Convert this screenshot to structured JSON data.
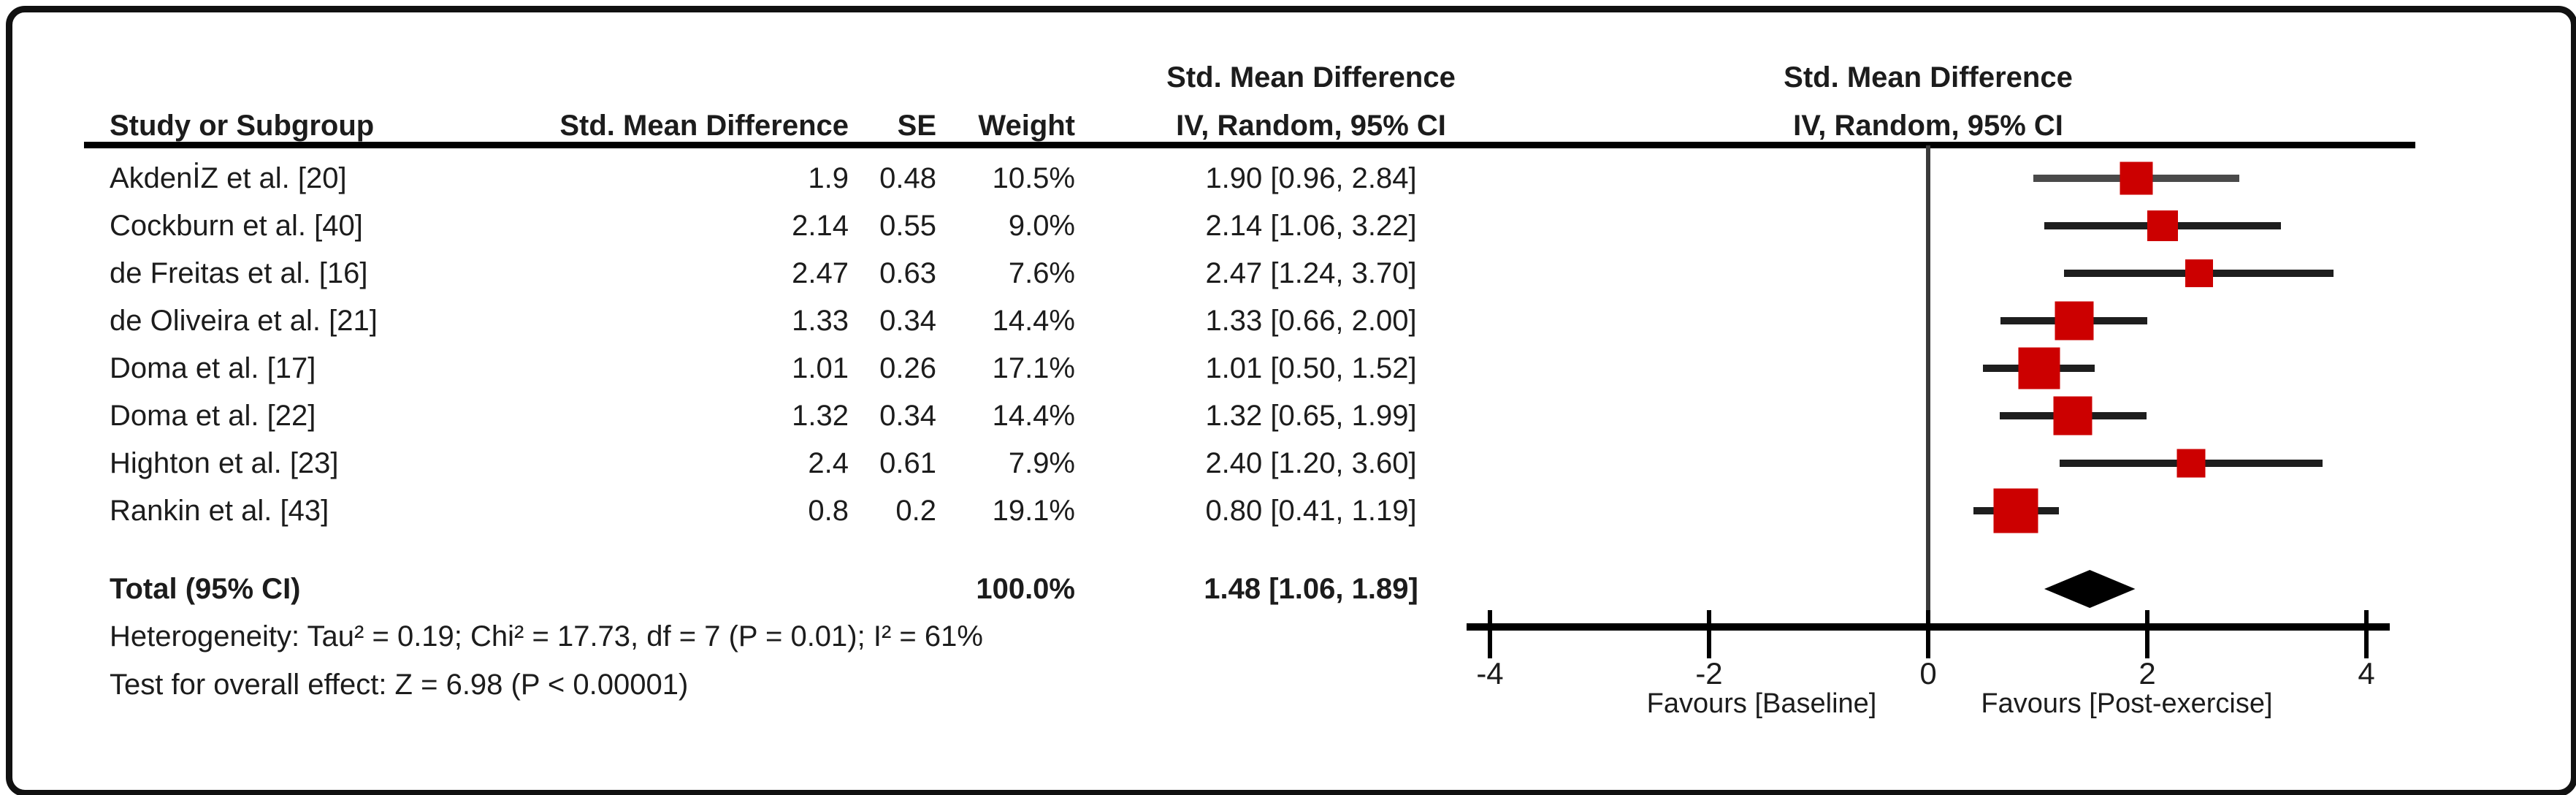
{
  "header": {
    "col_study": "Study or Subgroup",
    "col_smd": "Std. Mean Difference",
    "col_se": "SE",
    "col_weight": "Weight",
    "col_ci_line1": "Std. Mean Difference",
    "col_ci_line2": "IV, Random, 95% CI",
    "plot_line1": "Std. Mean Difference",
    "plot_line2": "IV, Random, 95% CI"
  },
  "rows": [
    {
      "study": "AkdenİZ et al. [20]",
      "smd": "1.9",
      "se": "0.48",
      "weight": "10.5%",
      "ci": "1.90 [0.96, 2.84]"
    },
    {
      "study": "Cockburn et al. [40]",
      "smd": "2.14",
      "se": "0.55",
      "weight": "9.0%",
      "ci": "2.14 [1.06, 3.22]"
    },
    {
      "study": "de Freitas et al. [16]",
      "smd": "2.47",
      "se": "0.63",
      "weight": "7.6%",
      "ci": "2.47 [1.24, 3.70]"
    },
    {
      "study": "de Oliveira et al. [21]",
      "smd": "1.33",
      "se": "0.34",
      "weight": "14.4%",
      "ci": "1.33 [0.66, 2.00]"
    },
    {
      "study": "Doma et al. [17]",
      "smd": "1.01",
      "se": "0.26",
      "weight": "17.1%",
      "ci": "1.01 [0.50, 1.52]"
    },
    {
      "study": "Doma et al. [22]",
      "smd": "1.32",
      "se": "0.34",
      "weight": "14.4%",
      "ci": "1.32 [0.65, 1.99]"
    },
    {
      "study": "Highton et al. [23]",
      "smd": "2.4",
      "se": "0.61",
      "weight": "7.9%",
      "ci": "2.40 [1.20, 3.60]"
    },
    {
      "study": "Rankin et al. [43]",
      "smd": "0.8",
      "se": "0.2",
      "weight": "19.1%",
      "ci": "0.80 [0.41, 1.19]"
    }
  ],
  "total": {
    "label": "Total (95% CI)",
    "weight": "100.0%",
    "ci": "1.48 [1.06, 1.89]"
  },
  "footnotes": {
    "heterogeneity": "Heterogeneity: Tau² = 0.19; Chi² = 17.73, df = 7 (P = 0.01); I² = 61%",
    "overall": "Test for overall effect: Z = 6.98 (P < 0.00001)"
  },
  "chart_data": {
    "type": "forest",
    "title": "Std. Mean Difference, IV, Random, 95% CI",
    "studies": [
      {
        "label": "AkdenİZ et al. [20]",
        "est": 1.9,
        "lo": 0.96,
        "hi": 2.84,
        "weight_pct": 10.5
      },
      {
        "label": "Cockburn et al. [40]",
        "est": 2.14,
        "lo": 1.06,
        "hi": 3.22,
        "weight_pct": 9.0
      },
      {
        "label": "de Freitas et al. [16]",
        "est": 2.47,
        "lo": 1.24,
        "hi": 3.7,
        "weight_pct": 7.6
      },
      {
        "label": "de Oliveira et al. [21]",
        "est": 1.33,
        "lo": 0.66,
        "hi": 2.0,
        "weight_pct": 14.4
      },
      {
        "label": "Doma et al. [17]",
        "est": 1.01,
        "lo": 0.5,
        "hi": 1.52,
        "weight_pct": 17.1
      },
      {
        "label": "Doma et al. [22]",
        "est": 1.32,
        "lo": 0.65,
        "hi": 1.99,
        "weight_pct": 14.4
      },
      {
        "label": "Highton et al. [23]",
        "est": 2.4,
        "lo": 1.2,
        "hi": 3.6,
        "weight_pct": 7.9
      },
      {
        "label": "Rankin et al. [43]",
        "est": 0.8,
        "lo": 0.41,
        "hi": 1.19,
        "weight_pct": 19.1
      }
    ],
    "total": {
      "est": 1.48,
      "lo": 1.06,
      "hi": 1.89,
      "weight_pct": 100.0
    },
    "heterogeneity": {
      "tau2": 0.19,
      "chi2": 17.73,
      "df": 7,
      "p": 0.01,
      "i2_pct": 61
    },
    "overall_effect": {
      "z": 6.98,
      "p": "< 0.00001"
    },
    "axis": {
      "xlim": [
        -4,
        4
      ],
      "ticks": [
        "-4",
        "-2",
        "0",
        "2",
        "4"
      ],
      "tick_values": [
        -4,
        -2,
        0,
        2,
        4
      ],
      "label_left": "Favours [Baseline]",
      "label_right": "Favours [Post-exercise]",
      "grid": false
    },
    "colors": {
      "square": "#cc0000",
      "ci_line": "#1e1e1e",
      "ci_line_first": "#4a4a4a",
      "diamond": "#000000",
      "zero_line": "#3a3a3a",
      "axis": "#000000"
    }
  }
}
